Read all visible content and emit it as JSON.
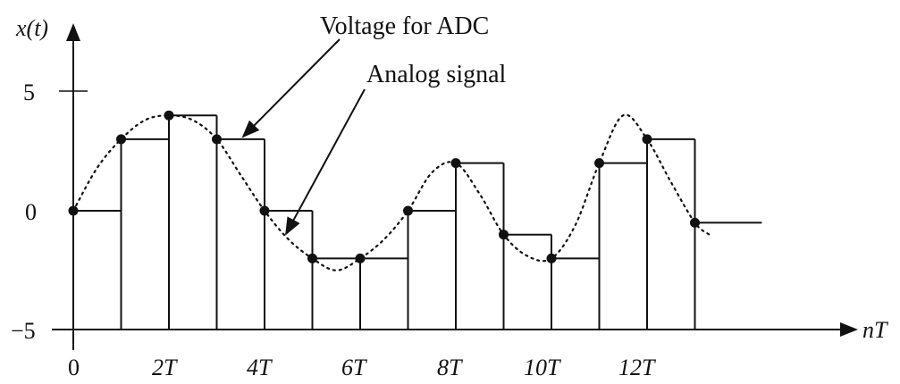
{
  "figure": {
    "y_axis_label": "x(t)",
    "x_axis_label": "nT",
    "y_ticks": [
      {
        "value": 5,
        "label": "5"
      },
      {
        "value": 0,
        "label": "0"
      },
      {
        "value": -5,
        "label": "−5"
      }
    ],
    "x_ticks": [
      {
        "value": 0,
        "label": "0"
      },
      {
        "value": 2,
        "label": "2T"
      },
      {
        "value": 4,
        "label": "4T"
      },
      {
        "value": 6,
        "label": "6T"
      },
      {
        "value": 8,
        "label": "8T"
      },
      {
        "value": 10,
        "label": "10T"
      },
      {
        "value": 12,
        "label": "12T"
      }
    ],
    "annotations": {
      "voltage_for_adc": "Voltage for ADC",
      "analog_signal": "Analog signal"
    },
    "line_color": "#111111"
  },
  "chart_data": {
    "type": "line",
    "xlim": [
      0,
      14.5
    ],
    "ylim": [
      -5,
      5
    ],
    "samples": [
      {
        "n": 0,
        "value": 0
      },
      {
        "n": 1,
        "value": 3
      },
      {
        "n": 2,
        "value": 4
      },
      {
        "n": 3,
        "value": 3
      },
      {
        "n": 4,
        "value": 0
      },
      {
        "n": 5,
        "value": -2
      },
      {
        "n": 6,
        "value": -2
      },
      {
        "n": 7,
        "value": 0
      },
      {
        "n": 8,
        "value": 2
      },
      {
        "n": 9,
        "value": -1
      },
      {
        "n": 10,
        "value": -2
      },
      {
        "n": 11,
        "value": 2
      },
      {
        "n": 12,
        "value": 3
      },
      {
        "n": 13,
        "value": -0.5
      }
    ],
    "analog_curve": [
      [
        0,
        0
      ],
      [
        0.5,
        1.8
      ],
      [
        1,
        3
      ],
      [
        1.5,
        3.8
      ],
      [
        2,
        4
      ],
      [
        2.5,
        3.8
      ],
      [
        3,
        3
      ],
      [
        3.5,
        1.5
      ],
      [
        4,
        0
      ],
      [
        4.5,
        -1.2
      ],
      [
        5,
        -2
      ],
      [
        5.5,
        -2.5
      ],
      [
        6,
        -2
      ],
      [
        6.5,
        -1.2
      ],
      [
        7,
        0
      ],
      [
        7.5,
        1.6
      ],
      [
        8,
        2
      ],
      [
        8.5,
        0.7
      ],
      [
        9,
        -1
      ],
      [
        9.5,
        -1.9
      ],
      [
        10,
        -2
      ],
      [
        10.5,
        -0.6
      ],
      [
        11,
        2
      ],
      [
        11.5,
        4
      ],
      [
        12,
        3
      ],
      [
        12.5,
        1.2
      ],
      [
        13,
        -0.5
      ],
      [
        13.3,
        -1.0
      ]
    ],
    "hold_tail_end": 14.4
  }
}
